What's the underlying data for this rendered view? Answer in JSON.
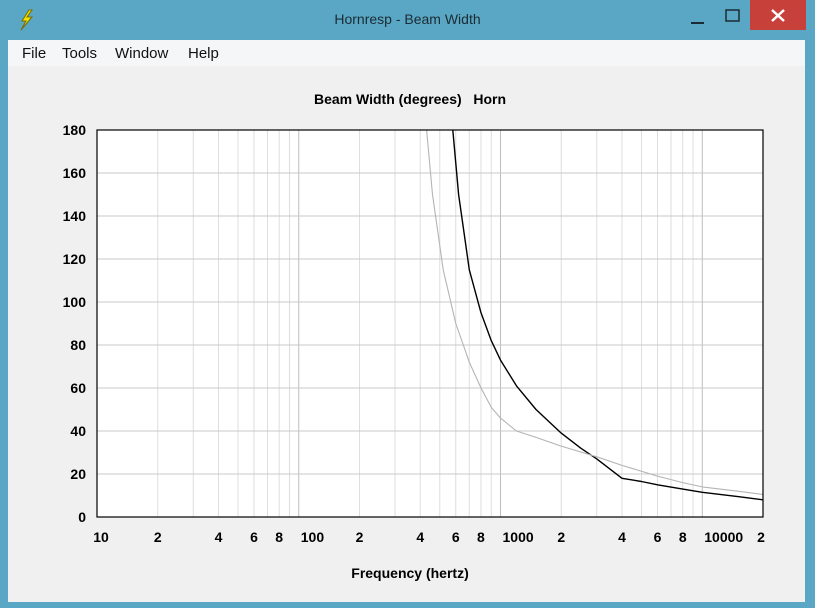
{
  "window": {
    "title": "Hornresp - Beam Width",
    "close_glyph": "✕",
    "minimize_glyph": "—",
    "maximize_glyph": "☐",
    "app_icon": "lightning-icon"
  },
  "menu": {
    "items": [
      "File",
      "Tools",
      "Window",
      "Help"
    ]
  },
  "chart_data": {
    "type": "line",
    "title": "Beam Width (degrees)   Horn",
    "xlabel": "Frequency (hertz)",
    "ylabel": "",
    "x_scale": "log",
    "xlim": [
      10,
      20000
    ],
    "ylim": [
      0,
      180
    ],
    "y_ticks": [
      0,
      20,
      40,
      60,
      80,
      100,
      120,
      140,
      160,
      180
    ],
    "x_tick_labels": [
      {
        "x": 10,
        "label": "10"
      },
      {
        "x": 20,
        "label": "2"
      },
      {
        "x": 40,
        "label": "4"
      },
      {
        "x": 60,
        "label": "6"
      },
      {
        "x": 80,
        "label": "8"
      },
      {
        "x": 100,
        "label": "100"
      },
      {
        "x": 200,
        "label": "2"
      },
      {
        "x": 400,
        "label": "4"
      },
      {
        "x": 600,
        "label": "6"
      },
      {
        "x": 800,
        "label": "8"
      },
      {
        "x": 1000,
        "label": "1000"
      },
      {
        "x": 2000,
        "label": "2"
      },
      {
        "x": 4000,
        "label": "4"
      },
      {
        "x": 6000,
        "label": "6"
      },
      {
        "x": 8000,
        "label": "8"
      },
      {
        "x": 10000,
        "label": "10000"
      },
      {
        "x": 20000,
        "label": "2"
      }
    ],
    "grid": true,
    "series": [
      {
        "color": "#000000",
        "points": [
          [
            580,
            180
          ],
          [
            620,
            150
          ],
          [
            700,
            115
          ],
          [
            800,
            95
          ],
          [
            900,
            82
          ],
          [
            1000,
            73
          ],
          [
            1200,
            61
          ],
          [
            1500,
            50
          ],
          [
            2000,
            39
          ],
          [
            2500,
            32
          ],
          [
            3000,
            27
          ],
          [
            4000,
            18
          ],
          [
            5000,
            16.5
          ],
          [
            6000,
            15
          ],
          [
            8000,
            13
          ],
          [
            10000,
            11.5
          ],
          [
            15000,
            9.5
          ],
          [
            20000,
            8
          ]
        ]
      },
      {
        "color": "#b4b4b4",
        "points": [
          [
            430,
            180
          ],
          [
            460,
            150
          ],
          [
            520,
            115
          ],
          [
            600,
            90
          ],
          [
            700,
            72
          ],
          [
            800,
            60
          ],
          [
            900,
            51
          ],
          [
            1000,
            46
          ],
          [
            1200,
            40
          ],
          [
            1500,
            37
          ],
          [
            2000,
            33
          ],
          [
            3000,
            28
          ],
          [
            4000,
            24
          ],
          [
            6000,
            19
          ],
          [
            8000,
            16
          ],
          [
            10000,
            14
          ],
          [
            15000,
            12
          ],
          [
            20000,
            10.5
          ]
        ]
      }
    ]
  }
}
